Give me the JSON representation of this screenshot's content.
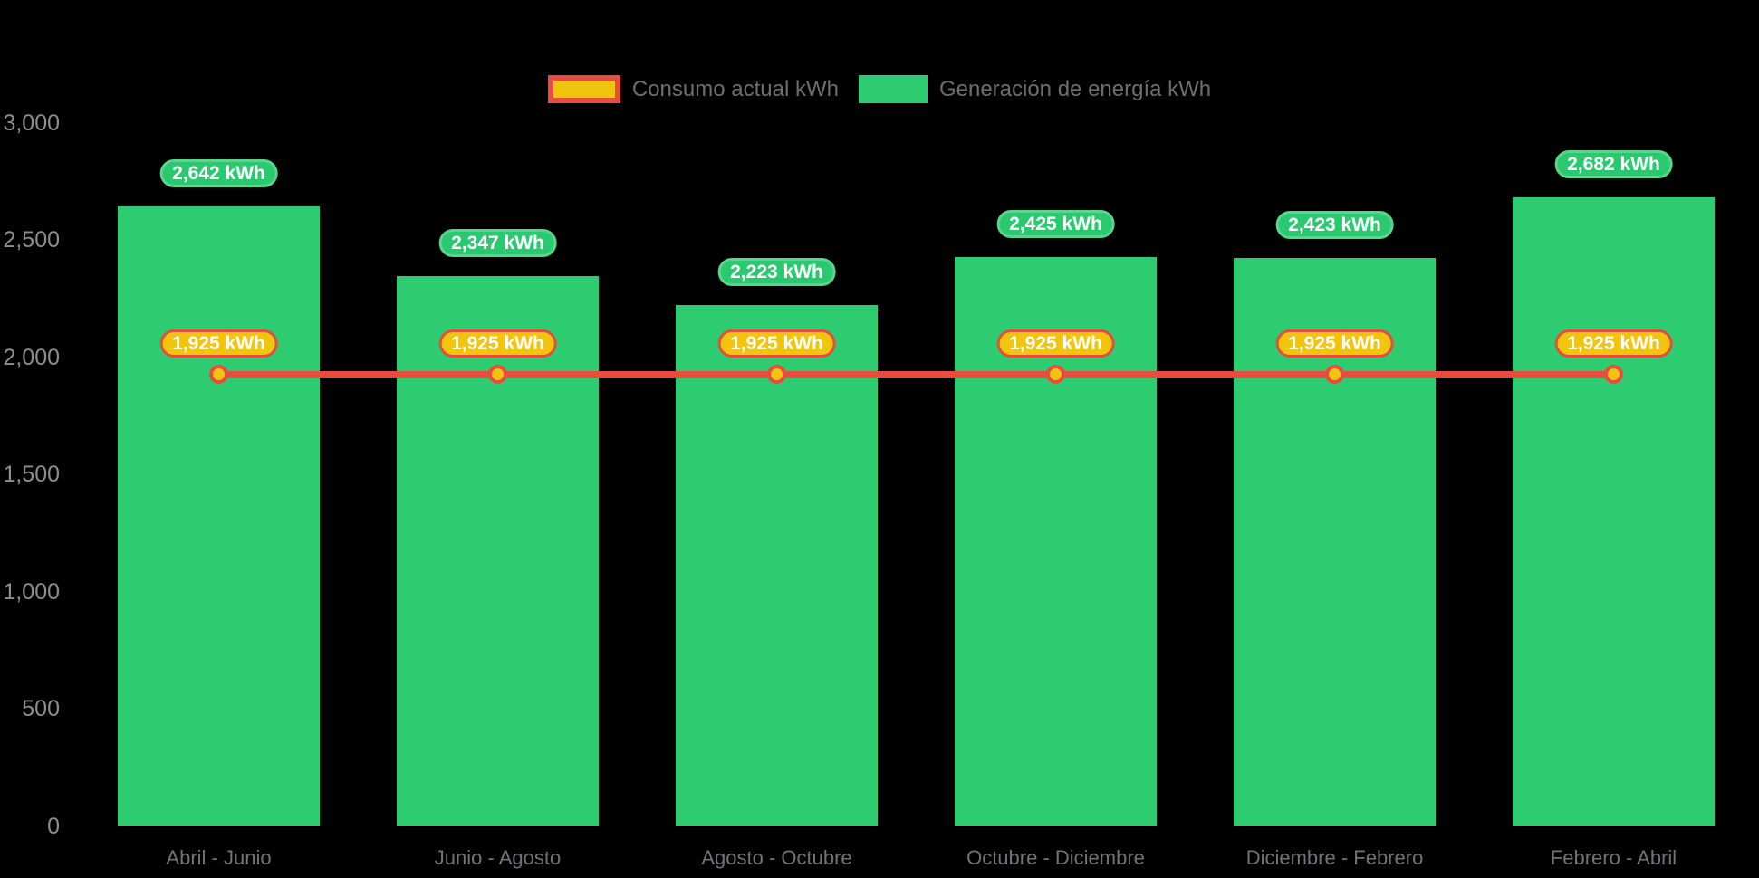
{
  "legend": {
    "items": [
      {
        "id": "consumo",
        "label": "Consumo actual kWh",
        "swatch": "line-swatch",
        "fill": "#f1c40f",
        "border": "#e74c3c"
      },
      {
        "id": "generacion",
        "label": "Generación de energía kWh",
        "swatch": "bar-swatch",
        "fill": "#2ecc71",
        "border": ""
      }
    ]
  },
  "chart_data": {
    "type": "bar",
    "title": "",
    "xlabel": "",
    "ylabel": "",
    "categories": [
      "Abril - Junio",
      "Junio - Agosto",
      "Agosto - Octubre",
      "Octubre - Diciembre",
      "Diciembre - Febrero",
      "Febrero - Abril"
    ],
    "series": [
      {
        "name": "Generación de energía kWh",
        "type": "bar",
        "values": [
          2642,
          2347,
          2223,
          2425,
          2423,
          2682
        ],
        "data_labels": [
          "2,642 kWh",
          "2,347 kWh",
          "2,223 kWh",
          "2,425 kWh",
          "2,423 kWh",
          "2,682 kWh"
        ],
        "color": "#2ecc71",
        "label_fill": "#2bc96f",
        "label_border": "#58d68d"
      },
      {
        "name": "Consumo actual kWh",
        "type": "line",
        "values": [
          1925,
          1925,
          1925,
          1925,
          1925,
          1925
        ],
        "data_labels": [
          "1,925 kWh",
          "1,925 kWh",
          "1,925 kWh",
          "1,925 kWh",
          "1,925 kWh",
          "1,925 kWh"
        ],
        "color": "#e74c3c",
        "marker_fill": "#f1c40f",
        "label_fill": "#f1c40f",
        "label_border": "#e74c3c"
      }
    ],
    "ylim": [
      0,
      3000
    ],
    "yticks": [
      0,
      500,
      1000,
      1500,
      2000,
      2500,
      3000
    ],
    "ytick_labels": [
      "0",
      "500",
      "1,000",
      "1,500",
      "2,000",
      "2,500",
      "3,000"
    ],
    "grid": false,
    "legend_position": "top-center",
    "background": "#000000"
  }
}
